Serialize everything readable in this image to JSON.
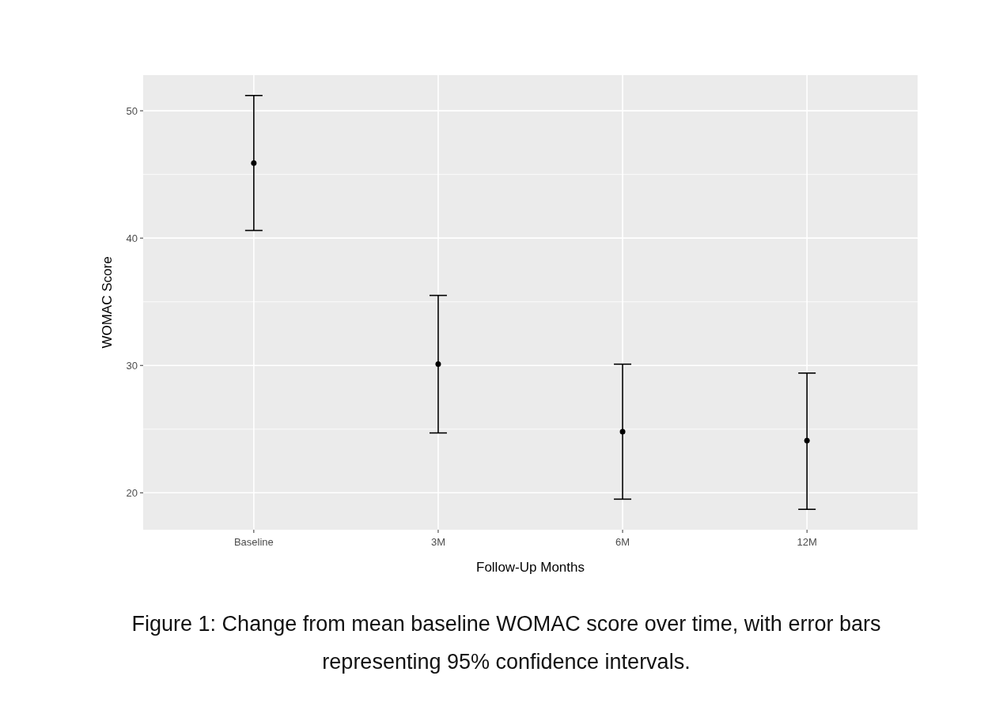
{
  "chart_data": {
    "type": "scatter",
    "xlabel": "Follow-Up Months",
    "ylabel": "WOMAC Score",
    "categories": [
      "Baseline",
      "3M",
      "6M",
      "12M"
    ],
    "values": [
      45.9,
      30.1,
      24.8,
      24.1
    ],
    "errors": [
      [
        40.6,
        51.2
      ],
      [
        24.7,
        35.5
      ],
      [
        19.5,
        30.1
      ],
      [
        18.7,
        29.4
      ]
    ],
    "color": "#000000",
    "marker": "circle",
    "ylim": [
      17.1,
      52.8
    ],
    "yticks": [
      20,
      30,
      40,
      50
    ],
    "grid": true,
    "annotations": [
      "Figure 1: Change from mean baseline WOMAC score over time, with error bars representing 95% confidence intervals."
    ]
  }
}
